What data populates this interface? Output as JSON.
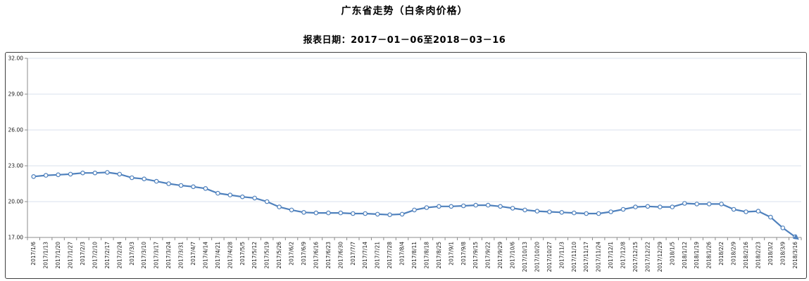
{
  "title": "广东省走势（白条肉价格）",
  "subtitle": "报表日期：2017－01－06至2018－03－16",
  "colors": {
    "line": "#4f81bd",
    "marker_fill": "#ffffff",
    "gridline": "#d9e1ee",
    "axis": "#8c8c8c",
    "frame_border": "#3f3f3f",
    "label_text": "#1a1a1a"
  },
  "chart_data": {
    "type": "line",
    "title": "广东省走势（白条肉价格）",
    "subtitle": "报表日期：2017－01－06至2018－03－16",
    "xlabel": "",
    "ylabel": "",
    "ylim": [
      17,
      32
    ],
    "ytick_interval": 3,
    "yticks": [
      "32.00",
      "29.00",
      "26.00",
      "23.00",
      "20.00",
      "17.00"
    ],
    "grid": true,
    "legend": "none",
    "marker": "open-circle",
    "line_end_cap": "arrow",
    "categories": [
      "2017/1/6",
      "2017/1/13",
      "2017/1/20",
      "2017/1/27",
      "2017/2/3",
      "2017/2/10",
      "2017/2/17",
      "2017/2/24",
      "2017/3/3",
      "2017/3/10",
      "2017/3/17",
      "2017/3/24",
      "2017/3/31",
      "2017/4/7",
      "2017/4/14",
      "2017/4/21",
      "2017/4/28",
      "2017/5/5",
      "2017/5/12",
      "2017/5/19",
      "2017/5/26",
      "2017/6/2",
      "2017/6/9",
      "2017/6/16",
      "2017/6/23",
      "2017/6/30",
      "2017/7/7",
      "2017/7/14",
      "2017/7/21",
      "2017/7/28",
      "2017/8/4",
      "2017/8/11",
      "2017/8/18",
      "2017/8/25",
      "2017/9/1",
      "2017/9/8",
      "2017/9/15",
      "2017/9/22",
      "2017/9/29",
      "2017/10/6",
      "2017/10/13",
      "2017/10/20",
      "2017/10/27",
      "2017/11/3",
      "2017/11/10",
      "2017/11/17",
      "2017/11/24",
      "2017/12/1",
      "2017/12/8",
      "2017/12/15",
      "2017/12/22",
      "2017/12/29",
      "2018/1/5",
      "2018/1/12",
      "2018/1/19",
      "2018/1/26",
      "2018/2/2",
      "2018/2/9",
      "2018/2/16",
      "2018/2/23",
      "2018/3/2",
      "2018/3/9",
      "2018/3/16"
    ],
    "values": [
      22.1,
      22.2,
      22.25,
      22.3,
      22.4,
      22.4,
      22.45,
      22.3,
      22.0,
      21.9,
      21.7,
      21.5,
      21.35,
      21.25,
      21.1,
      20.7,
      20.55,
      20.4,
      20.3,
      20.0,
      19.55,
      19.3,
      19.1,
      19.05,
      19.05,
      19.05,
      19.0,
      19.0,
      18.95,
      18.9,
      18.95,
      19.3,
      19.5,
      19.6,
      19.6,
      19.65,
      19.7,
      19.7,
      19.6,
      19.45,
      19.3,
      19.2,
      19.15,
      19.1,
      19.05,
      19.0,
      19.0,
      19.15,
      19.35,
      19.55,
      19.6,
      19.55,
      19.55,
      19.85,
      19.8,
      19.8,
      19.8,
      19.35,
      19.15,
      19.2,
      18.7,
      17.8,
      17.05
    ]
  }
}
